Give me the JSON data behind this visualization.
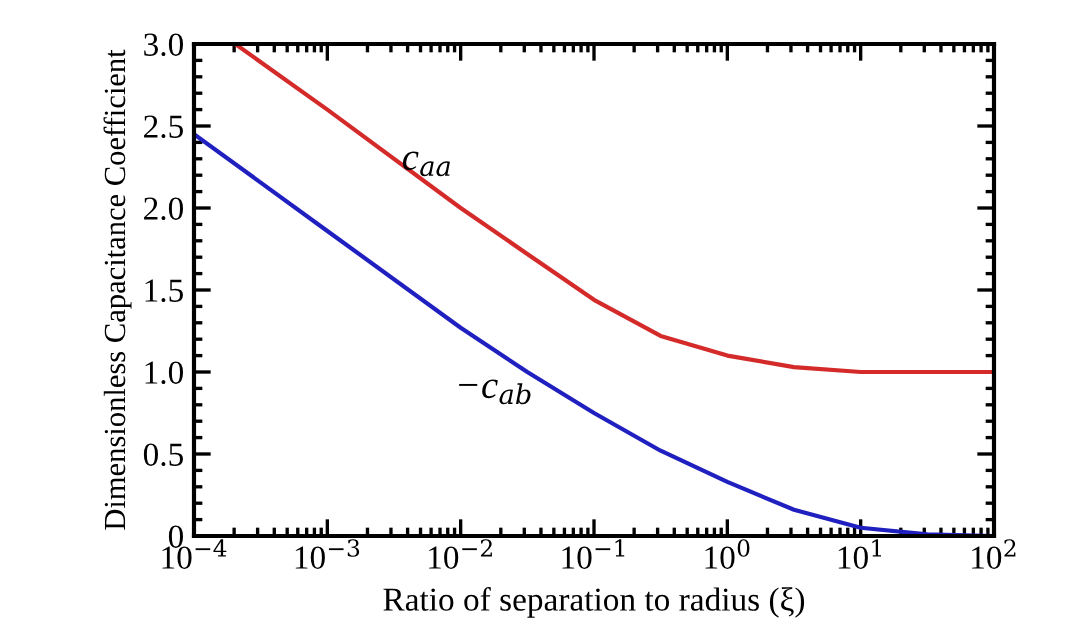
{
  "chart_data": {
    "type": "line",
    "xlabel": "Ratio of separation to radius (ξ)",
    "ylabel": "Dimensionless Capacitance Coefficient",
    "log": "x",
    "grid": false,
    "marker": "none",
    "line_style": "solid",
    "xlim": [
      0.0001,
      100
    ],
    "ylim": [
      0,
      3.0
    ],
    "xticks": [
      {
        "value": 0.0001,
        "label": "10$^{−4}$"
      },
      {
        "value": 0.001,
        "label": "10$^{−3}$"
      },
      {
        "value": 0.01,
        "label": "10$^{−2}$"
      },
      {
        "value": 0.1,
        "label": "10$^{−1}$"
      },
      {
        "value": 1,
        "label": "10$^{0}$"
      },
      {
        "value": 10,
        "label": "10$^{1}$"
      },
      {
        "value": 100,
        "label": "10$^{2}$"
      }
    ],
    "yticks": [
      0,
      {
        "value": 0.5,
        "label": "0.5"
      },
      {
        "value": 1,
        "label": "1.0"
      },
      {
        "value": 1.5,
        "label": "1.5"
      },
      {
        "value": 2,
        "label": "2.0"
      },
      {
        "value": 2.5,
        "label": "2.5"
      },
      {
        "value": 3,
        "label": "3.0"
      }
    ],
    "series": [
      {
        "name": "c$_{aa}$",
        "color": "#d42a2a",
        "x": [
          0.000204,
          0.001,
          0.01,
          0.0316,
          0.1,
          0.316,
          1,
          3.16,
          10,
          31.6,
          100
        ],
        "values": [
          3.0,
          2.6,
          2.0,
          1.72,
          1.44,
          1.22,
          1.1,
          1.03,
          1.0,
          1.0,
          1.0
        ]
      },
      {
        "name": "−c$_{ab}$",
        "color": "#2020c0",
        "x": [
          0.0001,
          0.001,
          0.01,
          0.0316,
          0.1,
          0.316,
          1,
          3.16,
          10,
          31.6,
          100
        ],
        "values": [
          2.45,
          1.86,
          1.27,
          1.0,
          0.75,
          0.52,
          0.33,
          0.16,
          0.05,
          0.01,
          0.0
        ]
      }
    ]
  }
}
